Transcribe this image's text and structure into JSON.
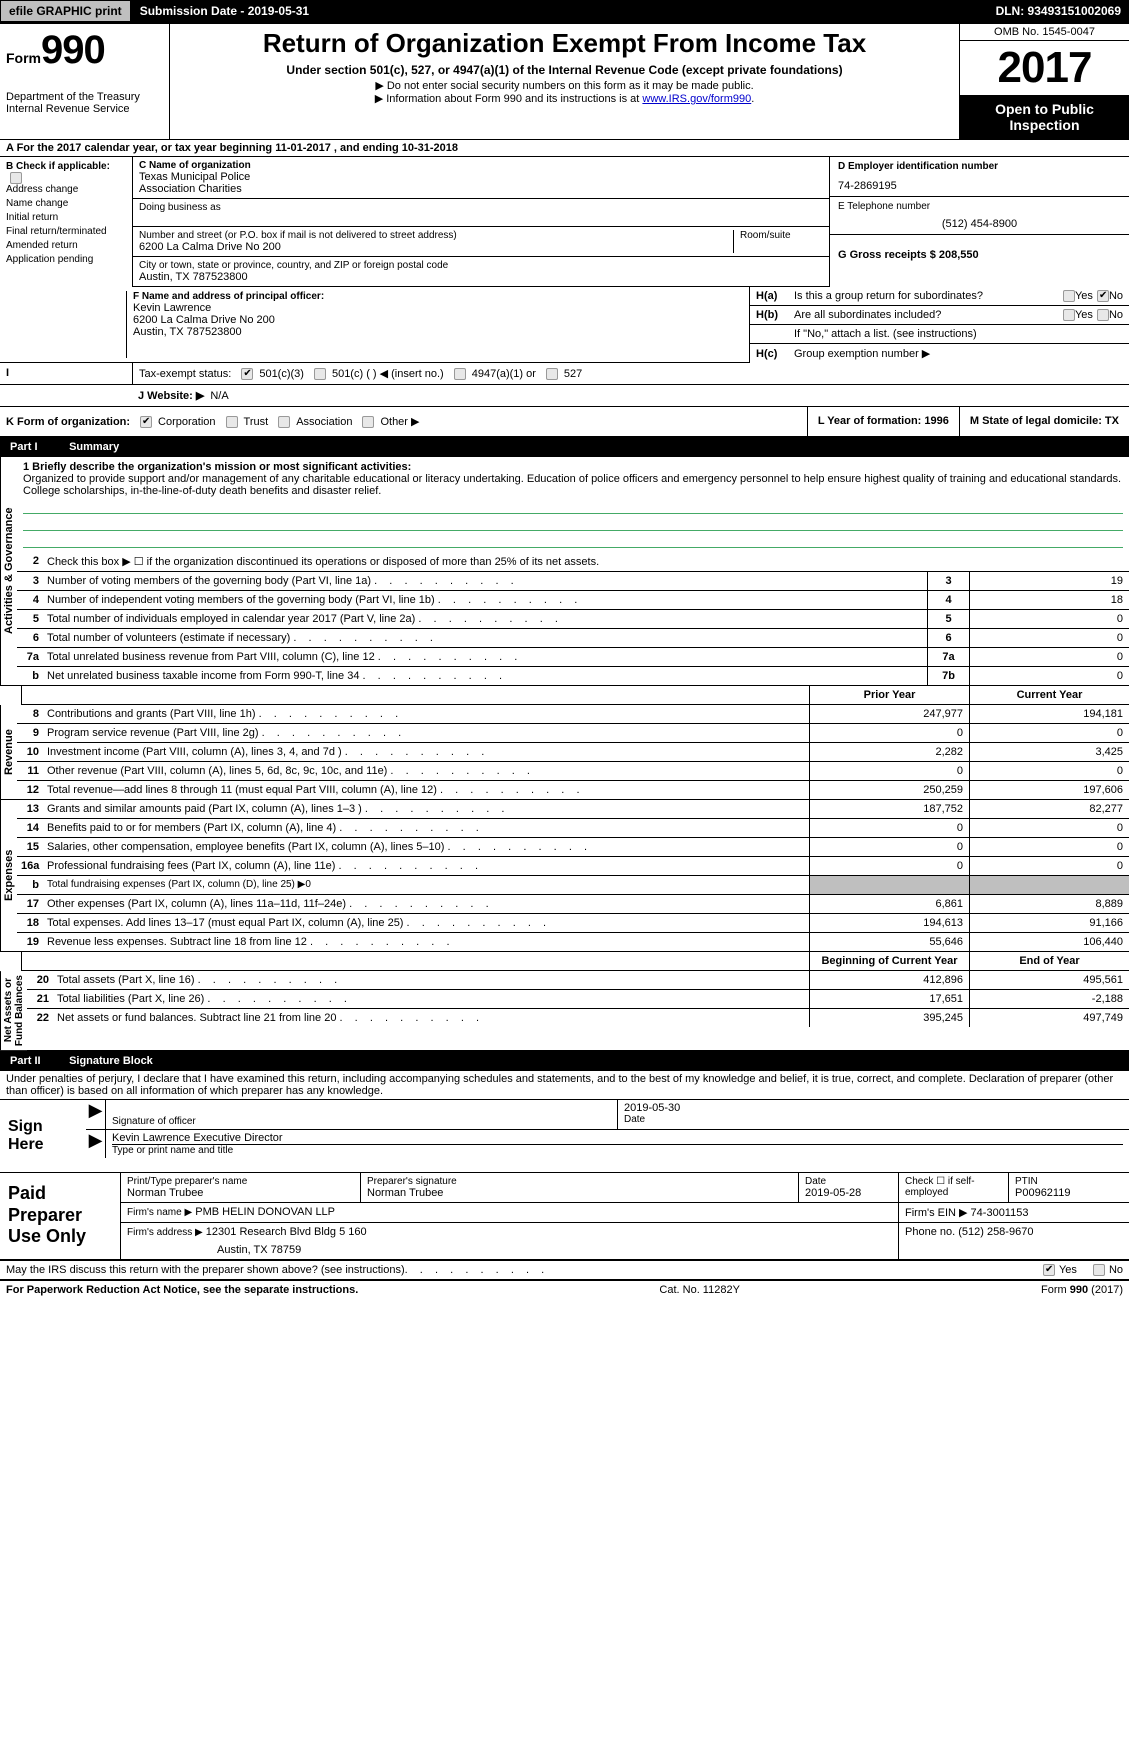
{
  "topbar": {
    "efile": "efile GRAPHIC print",
    "submission_label": "Submission Date - 2019-05-31",
    "dln_label": "DLN: 93493151002069"
  },
  "header": {
    "form_word": "Form",
    "form_num": "990",
    "dept1": "Department of the Treasury",
    "dept2": "Internal Revenue Service",
    "title": "Return of Organization Exempt From Income Tax",
    "subtitle": "Under section 501(c), 527, or 4947(a)(1) of the Internal Revenue Code (except private foundations)",
    "note1": "▶ Do not enter social security numbers on this form as it may be made public.",
    "note2_pre": "▶ Information about Form 990 and its instructions is at ",
    "note2_link": "www.IRS.gov/form990",
    "omb": "OMB No. 1545-0047",
    "year": "2017",
    "open1": "Open to Public",
    "open2": "Inspection"
  },
  "line_a": "A   For the 2017 calendar year, or tax year beginning 11-01-2017       , and ending 10-31-2018",
  "col_b": {
    "title": "B Check if applicable:",
    "items": [
      "Address change",
      "Name change",
      "Initial return",
      "Final return/terminated",
      "Amended return",
      "Application pending"
    ]
  },
  "col_c": {
    "name_label": "C Name of organization",
    "name1": "Texas Municipal Police",
    "name2": "Association Charities",
    "dba_label": "Doing business as",
    "addr_label": "Number and street (or P.O. box if mail is not delivered to street address)",
    "room_label": "Room/suite",
    "addr": "6200 La Calma Drive No 200",
    "city_label": "City or town, state or province, country, and ZIP or foreign postal code",
    "city": "Austin, TX  787523800",
    "f_label": "F Name and address of principal officer:",
    "f1": "Kevin Lawrence",
    "f2": "6200 La Calma Drive No 200",
    "f3": "Austin, TX  787523800"
  },
  "col_de": {
    "d_label": "D Employer identification number",
    "d_val": "74-2869195",
    "e_label": "E Telephone number",
    "e_val": "(512) 454-8900",
    "g_label": "G Gross receipts $ 208,550"
  },
  "section_h": {
    "ha_label": "Is this a group return for subordinates?",
    "hb_label": "Are all subordinates included?",
    "hb_note": "If \"No,\" attach a list. (see instructions)",
    "hc_label": "Group exemption number ▶",
    "yes": "Yes",
    "no": "No"
  },
  "tax_status": {
    "label": "Tax-exempt status:",
    "opts": [
      "501(c)(3)",
      "501(c) (  ) ◀ (insert no.)",
      "4947(a)(1) or",
      "527"
    ]
  },
  "website": {
    "label": "J   Website: ▶",
    "val": "N/A"
  },
  "k": {
    "label": "K Form of organization:",
    "opts": [
      "Corporation",
      "Trust",
      "Association",
      "Other ▶"
    ]
  },
  "l": {
    "label": "L Year of formation: 1996"
  },
  "m": {
    "label": "M State of legal domicile: TX"
  },
  "part1": {
    "head": "Summary",
    "q1_label": "1   Briefly describe the organization's mission or most significant activities:",
    "q1_text": "Organized to provide support and/or management of any charitable educational or literacy undertaking. Education of police officers and emergency personnel to help ensure highest quality of training and educational standards. College scholarships, in-the-line-of-duty death benefits and disaster relief.",
    "q2": "Check this box ▶ ☐  if the organization discontinued its operations or disposed of more than 25% of its net assets."
  },
  "side_labels": {
    "act": "Activities & Governance",
    "rev": "Revenue",
    "exp": "Expenses",
    "net": "Net Assets or\nFund Balances"
  },
  "governance_rows": [
    {
      "n": "3",
      "d": "Number of voting members of the governing body (Part VI, line 1a)",
      "box": "3",
      "v": "19"
    },
    {
      "n": "4",
      "d": "Number of independent voting members of the governing body (Part VI, line 1b)",
      "box": "4",
      "v": "18"
    },
    {
      "n": "5",
      "d": "Total number of individuals employed in calendar year 2017 (Part V, line 2a)",
      "box": "5",
      "v": "0"
    },
    {
      "n": "6",
      "d": "Total number of volunteers (estimate if necessary)",
      "box": "6",
      "v": "0"
    },
    {
      "n": "7a",
      "d": "Total unrelated business revenue from Part VIII, column (C), line 12",
      "box": "7a",
      "v": "0"
    },
    {
      "n": "b",
      "d": "Net unrelated business taxable income from Form 990-T, line 34",
      "box": "7b",
      "v": "0"
    }
  ],
  "col_headers": {
    "prior": "Prior Year",
    "current": "Current Year",
    "beg": "Beginning of Current Year",
    "end": "End of Year"
  },
  "revenue_rows": [
    {
      "n": "8",
      "d": "Contributions and grants (Part VIII, line 1h)",
      "p": "247,977",
      "c": "194,181"
    },
    {
      "n": "9",
      "d": "Program service revenue (Part VIII, line 2g)",
      "p": "0",
      "c": "0"
    },
    {
      "n": "10",
      "d": "Investment income (Part VIII, column (A), lines 3, 4, and 7d )",
      "p": "2,282",
      "c": "3,425"
    },
    {
      "n": "11",
      "d": "Other revenue (Part VIII, column (A), lines 5, 6d, 8c, 9c, 10c, and 11e)",
      "p": "0",
      "c": "0"
    },
    {
      "n": "12",
      "d": "Total revenue—add lines 8 through 11 (must equal Part VIII, column (A), line 12)",
      "p": "250,259",
      "c": "197,606"
    }
  ],
  "expense_rows": [
    {
      "n": "13",
      "d": "Grants and similar amounts paid (Part IX, column (A), lines 1–3 )",
      "p": "187,752",
      "c": "82,277"
    },
    {
      "n": "14",
      "d": "Benefits paid to or for members (Part IX, column (A), line 4)",
      "p": "0",
      "c": "0"
    },
    {
      "n": "15",
      "d": "Salaries, other compensation, employee benefits (Part IX, column (A), lines 5–10)",
      "p": "0",
      "c": "0"
    },
    {
      "n": "16a",
      "d": "Professional fundraising fees (Part IX, column (A), line 11e)",
      "p": "0",
      "c": "0"
    },
    {
      "n": "b",
      "d": "Total fundraising expenses (Part IX, column (D), line 25) ▶0",
      "p": "",
      "c": "",
      "shade": true,
      "small": true
    },
    {
      "n": "17",
      "d": "Other expenses (Part IX, column (A), lines 11a–11d, 11f–24e)",
      "p": "6,861",
      "c": "8,889"
    },
    {
      "n": "18",
      "d": "Total expenses. Add lines 13–17 (must equal Part IX, column (A), line 25)",
      "p": "194,613",
      "c": "91,166"
    },
    {
      "n": "19",
      "d": "Revenue less expenses. Subtract line 18 from line 12",
      "p": "55,646",
      "c": "106,440"
    }
  ],
  "net_rows": [
    {
      "n": "20",
      "d": "Total assets (Part X, line 16)",
      "p": "412,896",
      "c": "495,561"
    },
    {
      "n": "21",
      "d": "Total liabilities (Part X, line 26)",
      "p": "17,651",
      "c": "-2,188"
    },
    {
      "n": "22",
      "d": "Net assets or fund balances. Subtract line 21 from line 20",
      "p": "395,245",
      "c": "497,749"
    }
  ],
  "part2": {
    "head": "Signature Block",
    "penalty": "Under penalties of perjury, I declare that I have examined this return, including accompanying schedules and statements, and to the best of my knowledge and belief, it is true, correct, and complete. Declaration of preparer (other than officer) is based on all information of which preparer has any knowledge.",
    "sign_here": "Sign Here",
    "sig_officer": "Signature of officer",
    "sig_date": "2019-05-30",
    "date_label": "Date",
    "officer_name": "Kevin Lawrence  Executive Director",
    "type_name": "Type or print name and title"
  },
  "paid": {
    "label": "Paid Preparer Use Only",
    "r1": {
      "c1l": "Print/Type preparer's name",
      "c1v": "Norman Trubee",
      "c2l": "Preparer's signature",
      "c2v": "Norman Trubee",
      "c3l": "Date",
      "c3v": "2019-05-28",
      "c4l": "Check ☐ if self-employed",
      "c5l": "PTIN",
      "c5v": "P00962119"
    },
    "r2": {
      "c1l": "Firm's name      ▶",
      "c1v": "PMB HELIN DONOVAN LLP",
      "c2l": "Firm's EIN ▶ 74-3001153"
    },
    "r3": {
      "c1l": "Firm's address ▶",
      "c1v": "12301 Research Blvd Bldg 5 160",
      "c1v2": "Austin, TX  78759",
      "c2l": "Phone no. (512) 258-9670"
    }
  },
  "discuss": {
    "text": "May the IRS discuss this return with the preparer shown above? (see instructions)",
    "yes": "Yes",
    "no": "No"
  },
  "footer": {
    "left": "For Paperwork Reduction Act Notice, see the separate instructions.",
    "mid": "Cat. No. 11282Y",
    "right": "Form 990 (2017)"
  }
}
